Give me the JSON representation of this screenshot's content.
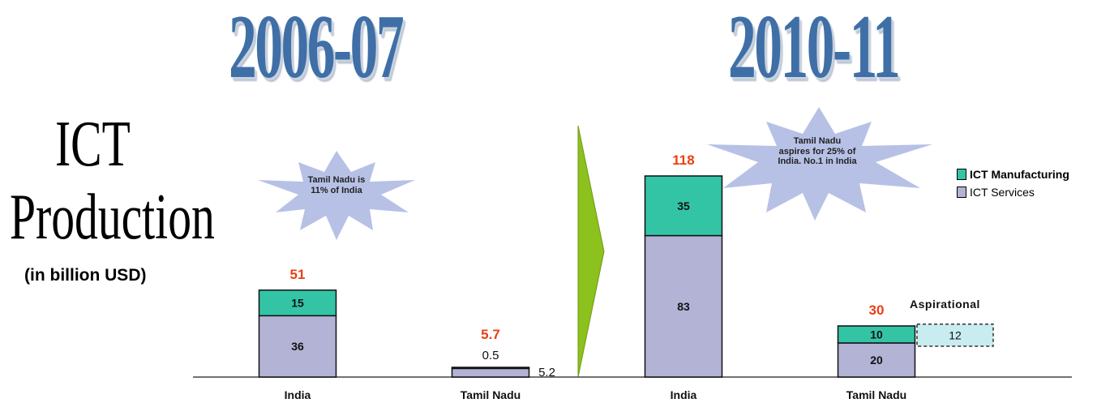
{
  "titles": {
    "period_left": "2006-07",
    "period_right": "2010-11",
    "main_line1": "ICT",
    "main_line2": "Production",
    "unit": "(in billion USD)"
  },
  "callouts": {
    "left": "Tamil Nadu is 11% of India",
    "right": "Tamil Nadu aspires for 25% of India. No.1 in India"
  },
  "legend": {
    "manufacturing": "ICT Manufacturing",
    "services": "ICT Services"
  },
  "aspirational_label": "Aspirational",
  "colors": {
    "manufacturing": "#33c4a6",
    "services": "#b3b3d6",
    "aspirational": "#c8ecef",
    "total_label": "#ea3f12",
    "period_title": "#3f6fa6",
    "arrow": "#8cc11e",
    "callout": "#b7c1e6"
  },
  "chart_data": {
    "type": "bar",
    "stacked": true,
    "categories": [
      "India",
      "Tamil Nadu",
      "India",
      "Tamil Nadu"
    ],
    "groups": [
      "2006-07",
      "2006-07",
      "2010-11",
      "2010-11"
    ],
    "series": [
      {
        "name": "ICT Services",
        "values": [
          36,
          5.2,
          83,
          20
        ]
      },
      {
        "name": "ICT Manufacturing",
        "values": [
          15,
          0.5,
          35,
          10
        ]
      }
    ],
    "segment_labels": {
      "services": [
        "36",
        "5.2",
        "83",
        "20"
      ],
      "manufacturing": [
        "15",
        "0.5",
        "35",
        "10"
      ]
    },
    "totals": [
      "51",
      "5.7",
      "118",
      "30"
    ],
    "aspirational": {
      "category_index": 3,
      "value": 12,
      "label": "12"
    },
    "ylim": [
      0,
      118
    ],
    "grid": false,
    "legend_position": "right"
  }
}
